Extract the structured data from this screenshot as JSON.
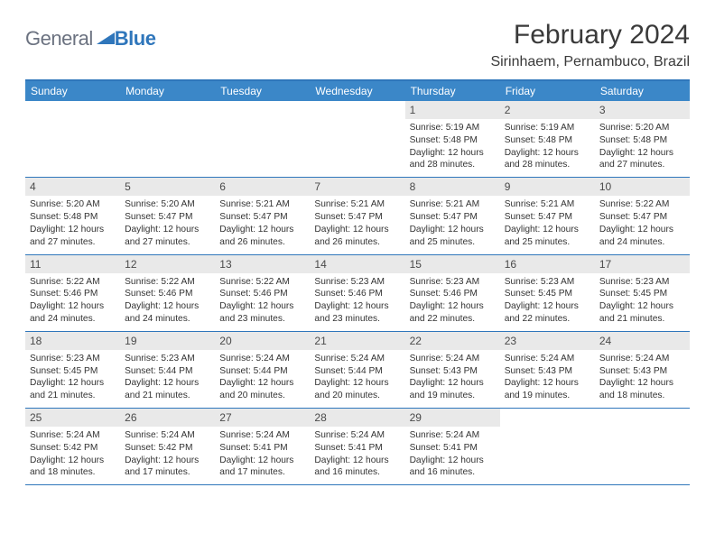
{
  "brand": {
    "left": "General",
    "right": "Blue",
    "gray_color": "#6b7280",
    "blue_color": "#2f76bb"
  },
  "title": "February 2024",
  "location": "Sirinhaem, Pernambuco, Brazil",
  "weekday_labels": [
    "Sunday",
    "Monday",
    "Tuesday",
    "Wednesday",
    "Thursday",
    "Friday",
    "Saturday"
  ],
  "colors": {
    "header_bg": "#3b87c8",
    "border": "#2f76bb",
    "daynum_bg": "#e9e9e9",
    "text": "#333333"
  },
  "layout": {
    "leading_empty": 4,
    "trailing_empty": 2
  },
  "days": [
    {
      "n": "1",
      "sunrise": "Sunrise: 5:19 AM",
      "sunset": "Sunset: 5:48 PM",
      "day1": "Daylight: 12 hours",
      "day2": "and 28 minutes."
    },
    {
      "n": "2",
      "sunrise": "Sunrise: 5:19 AM",
      "sunset": "Sunset: 5:48 PM",
      "day1": "Daylight: 12 hours",
      "day2": "and 28 minutes."
    },
    {
      "n": "3",
      "sunrise": "Sunrise: 5:20 AM",
      "sunset": "Sunset: 5:48 PM",
      "day1": "Daylight: 12 hours",
      "day2": "and 27 minutes."
    },
    {
      "n": "4",
      "sunrise": "Sunrise: 5:20 AM",
      "sunset": "Sunset: 5:48 PM",
      "day1": "Daylight: 12 hours",
      "day2": "and 27 minutes."
    },
    {
      "n": "5",
      "sunrise": "Sunrise: 5:20 AM",
      "sunset": "Sunset: 5:47 PM",
      "day1": "Daylight: 12 hours",
      "day2": "and 27 minutes."
    },
    {
      "n": "6",
      "sunrise": "Sunrise: 5:21 AM",
      "sunset": "Sunset: 5:47 PM",
      "day1": "Daylight: 12 hours",
      "day2": "and 26 minutes."
    },
    {
      "n": "7",
      "sunrise": "Sunrise: 5:21 AM",
      "sunset": "Sunset: 5:47 PM",
      "day1": "Daylight: 12 hours",
      "day2": "and 26 minutes."
    },
    {
      "n": "8",
      "sunrise": "Sunrise: 5:21 AM",
      "sunset": "Sunset: 5:47 PM",
      "day1": "Daylight: 12 hours",
      "day2": "and 25 minutes."
    },
    {
      "n": "9",
      "sunrise": "Sunrise: 5:21 AM",
      "sunset": "Sunset: 5:47 PM",
      "day1": "Daylight: 12 hours",
      "day2": "and 25 minutes."
    },
    {
      "n": "10",
      "sunrise": "Sunrise: 5:22 AM",
      "sunset": "Sunset: 5:47 PM",
      "day1": "Daylight: 12 hours",
      "day2": "and 24 minutes."
    },
    {
      "n": "11",
      "sunrise": "Sunrise: 5:22 AM",
      "sunset": "Sunset: 5:46 PM",
      "day1": "Daylight: 12 hours",
      "day2": "and 24 minutes."
    },
    {
      "n": "12",
      "sunrise": "Sunrise: 5:22 AM",
      "sunset": "Sunset: 5:46 PM",
      "day1": "Daylight: 12 hours",
      "day2": "and 24 minutes."
    },
    {
      "n": "13",
      "sunrise": "Sunrise: 5:22 AM",
      "sunset": "Sunset: 5:46 PM",
      "day1": "Daylight: 12 hours",
      "day2": "and 23 minutes."
    },
    {
      "n": "14",
      "sunrise": "Sunrise: 5:23 AM",
      "sunset": "Sunset: 5:46 PM",
      "day1": "Daylight: 12 hours",
      "day2": "and 23 minutes."
    },
    {
      "n": "15",
      "sunrise": "Sunrise: 5:23 AM",
      "sunset": "Sunset: 5:46 PM",
      "day1": "Daylight: 12 hours",
      "day2": "and 22 minutes."
    },
    {
      "n": "16",
      "sunrise": "Sunrise: 5:23 AM",
      "sunset": "Sunset: 5:45 PM",
      "day1": "Daylight: 12 hours",
      "day2": "and 22 minutes."
    },
    {
      "n": "17",
      "sunrise": "Sunrise: 5:23 AM",
      "sunset": "Sunset: 5:45 PM",
      "day1": "Daylight: 12 hours",
      "day2": "and 21 minutes."
    },
    {
      "n": "18",
      "sunrise": "Sunrise: 5:23 AM",
      "sunset": "Sunset: 5:45 PM",
      "day1": "Daylight: 12 hours",
      "day2": "and 21 minutes."
    },
    {
      "n": "19",
      "sunrise": "Sunrise: 5:23 AM",
      "sunset": "Sunset: 5:44 PM",
      "day1": "Daylight: 12 hours",
      "day2": "and 21 minutes."
    },
    {
      "n": "20",
      "sunrise": "Sunrise: 5:24 AM",
      "sunset": "Sunset: 5:44 PM",
      "day1": "Daylight: 12 hours",
      "day2": "and 20 minutes."
    },
    {
      "n": "21",
      "sunrise": "Sunrise: 5:24 AM",
      "sunset": "Sunset: 5:44 PM",
      "day1": "Daylight: 12 hours",
      "day2": "and 20 minutes."
    },
    {
      "n": "22",
      "sunrise": "Sunrise: 5:24 AM",
      "sunset": "Sunset: 5:43 PM",
      "day1": "Daylight: 12 hours",
      "day2": "and 19 minutes."
    },
    {
      "n": "23",
      "sunrise": "Sunrise: 5:24 AM",
      "sunset": "Sunset: 5:43 PM",
      "day1": "Daylight: 12 hours",
      "day2": "and 19 minutes."
    },
    {
      "n": "24",
      "sunrise": "Sunrise: 5:24 AM",
      "sunset": "Sunset: 5:43 PM",
      "day1": "Daylight: 12 hours",
      "day2": "and 18 minutes."
    },
    {
      "n": "25",
      "sunrise": "Sunrise: 5:24 AM",
      "sunset": "Sunset: 5:42 PM",
      "day1": "Daylight: 12 hours",
      "day2": "and 18 minutes."
    },
    {
      "n": "26",
      "sunrise": "Sunrise: 5:24 AM",
      "sunset": "Sunset: 5:42 PM",
      "day1": "Daylight: 12 hours",
      "day2": "and 17 minutes."
    },
    {
      "n": "27",
      "sunrise": "Sunrise: 5:24 AM",
      "sunset": "Sunset: 5:41 PM",
      "day1": "Daylight: 12 hours",
      "day2": "and 17 minutes."
    },
    {
      "n": "28",
      "sunrise": "Sunrise: 5:24 AM",
      "sunset": "Sunset: 5:41 PM",
      "day1": "Daylight: 12 hours",
      "day2": "and 16 minutes."
    },
    {
      "n": "29",
      "sunrise": "Sunrise: 5:24 AM",
      "sunset": "Sunset: 5:41 PM",
      "day1": "Daylight: 12 hours",
      "day2": "and 16 minutes."
    }
  ]
}
